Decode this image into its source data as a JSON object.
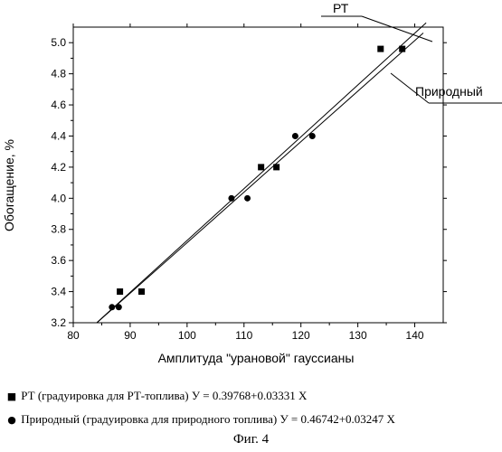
{
  "chart_data": {
    "type": "scatter",
    "xlabel": "Амплитуда \"урановой\" гауссианы",
    "ylabel": "Обогащение, %",
    "xlim": [
      80,
      145
    ],
    "ylim": [
      3.2,
      5.1
    ],
    "x_ticks": [
      80,
      90,
      100,
      110,
      120,
      130,
      140
    ],
    "y_ticks": [
      3.2,
      3.4,
      3.6,
      3.8,
      4.0,
      4.2,
      4.4,
      4.6,
      4.8,
      5.0
    ],
    "x_tick_labels": [
      "80",
      "90",
      "100",
      "110",
      "120",
      "130",
      "140"
    ],
    "y_tick_labels": [
      "3.2",
      "3.4",
      "3.6",
      "3.8",
      "4.0",
      "4.2",
      "4.4",
      "4.6",
      "4.8",
      "5.0"
    ],
    "grid": false,
    "series": [
      {
        "name": "РТ",
        "marker": "square",
        "points": [
          [
            88.2,
            3.4
          ],
          [
            92.0,
            3.4
          ],
          [
            113.0,
            4.2
          ],
          [
            115.7,
            4.2
          ],
          [
            134.0,
            4.96
          ],
          [
            137.8,
            4.96
          ]
        ],
        "fit": {
          "intercept": 0.39768,
          "slope": 0.03331
        }
      },
      {
        "name": "Природный",
        "marker": "circle",
        "points": [
          [
            86.8,
            3.3
          ],
          [
            88.0,
            3.3
          ],
          [
            107.8,
            4.0
          ],
          [
            110.6,
            4.0
          ],
          [
            119.0,
            4.4
          ],
          [
            122.0,
            4.4
          ]
        ],
        "fit": {
          "intercept": 0.46742,
          "slope": 0.03247
        }
      }
    ],
    "legend": [
      {
        "marker": "■",
        "text": "РТ (градуировка для РТ-топлива) У = 0.39768+0.03331 Х"
      },
      {
        "marker": "●",
        "text": "Природный (градуировка для природного топлива) У = 0.46742+0.03247 Х"
      }
    ],
    "caption": "Фиг. 4"
  }
}
